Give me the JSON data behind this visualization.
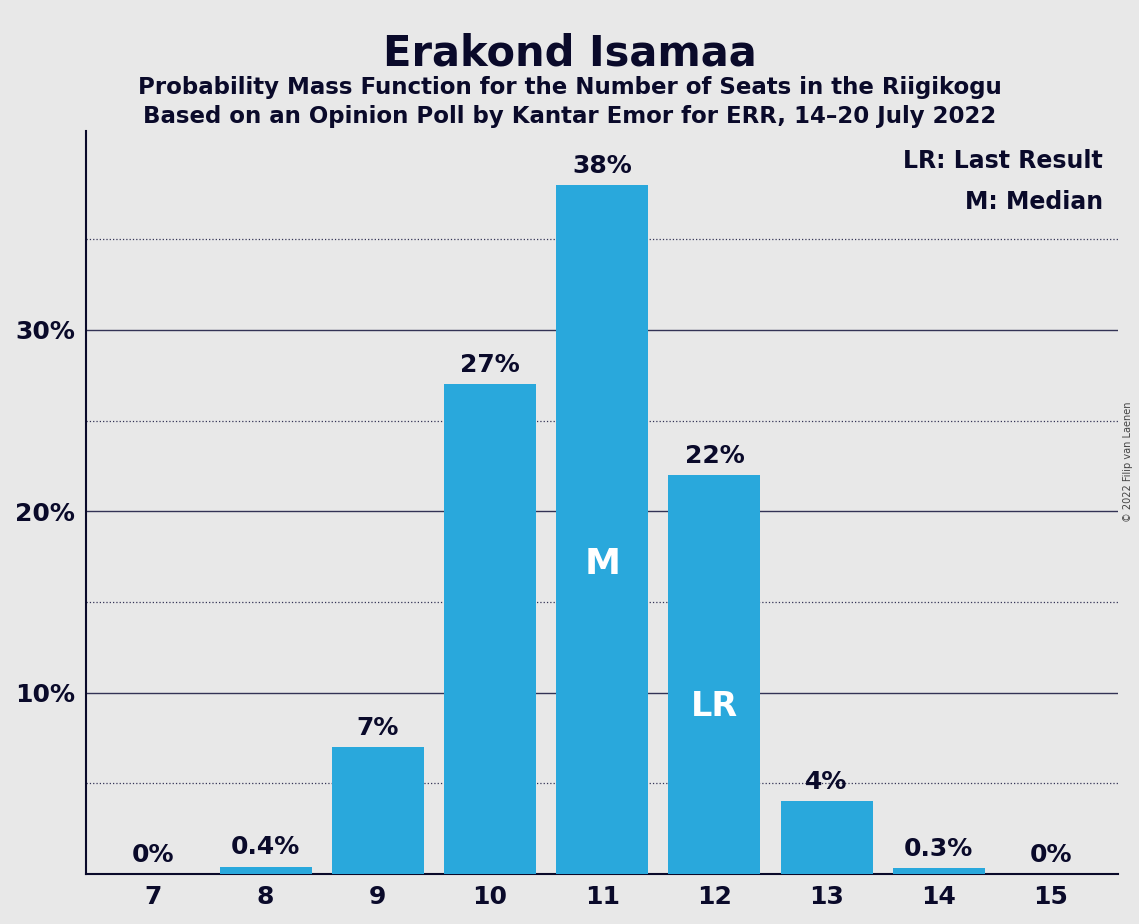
{
  "title": "Erakond Isamaa",
  "subtitle1": "Probability Mass Function for the Number of Seats in the Riigikogu",
  "subtitle2": "Based on an Opinion Poll by Kantar Emor for ERR, 14–20 July 2022",
  "copyright": "© 2022 Filip van Laenen",
  "categories": [
    7,
    8,
    9,
    10,
    11,
    12,
    13,
    14,
    15
  ],
  "values": [
    0.0,
    0.4,
    7.0,
    27.0,
    38.0,
    22.0,
    4.0,
    0.3,
    0.0
  ],
  "labels": [
    "0%",
    "0.4%",
    "7%",
    "27%",
    "38%",
    "22%",
    "4%",
    "0.3%",
    "0%"
  ],
  "bar_color": "#29a8dc",
  "background_color": "#e8e8e8",
  "text_color": "#0a0a2a",
  "median_bar_cat": 11,
  "lr_bar_cat": 12,
  "ylim": [
    0,
    41
  ],
  "yticks_solid": [
    10,
    20,
    30
  ],
  "yticks_dotted": [
    5,
    15,
    25,
    35
  ],
  "ytick_labels_vals": [
    10,
    20,
    30
  ],
  "ytick_labels_strs": [
    "10%",
    "20%",
    "30%"
  ],
  "grid_color": "#333355",
  "title_fontsize": 30,
  "subtitle_fontsize": 16.5,
  "legend_text": [
    "LR: Last Result",
    "M: Median"
  ],
  "legend_fontsize": 17,
  "bar_label_fontsize": 18,
  "bar_label_color": "#0a0a2a",
  "inside_label_color": "#ffffff",
  "m_label_fontsize": 26,
  "lr_label_fontsize": 24,
  "tick_fontsize": 18,
  "spine_color": "#0a0a2a"
}
